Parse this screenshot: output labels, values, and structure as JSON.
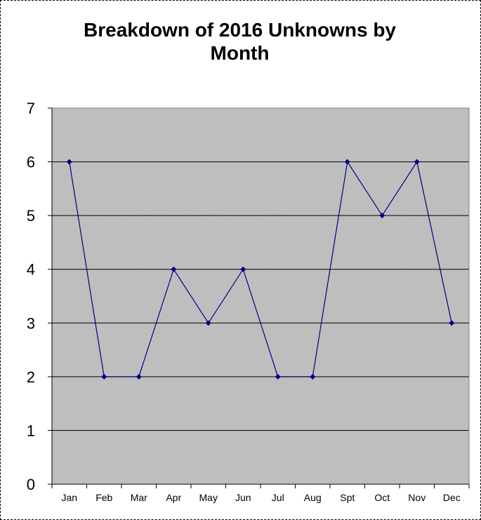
{
  "chart_data": {
    "type": "line",
    "title_line1": "Breakdown of 2016 Unknowns by",
    "title_line2": "Month",
    "xlabel": "",
    "ylabel": "",
    "categories": [
      "Jan",
      "Feb",
      "Mar",
      "Apr",
      "May",
      "Jun",
      "Jul",
      "Aug",
      "Spt",
      "Oct",
      "Nov",
      "Dec"
    ],
    "yticks": [
      "0",
      "1",
      "2",
      "3",
      "4",
      "5",
      "6",
      "7"
    ],
    "ylim": [
      0,
      7
    ],
    "grid": true,
    "legend": "none",
    "series": [
      {
        "values": [
          6,
          2,
          2,
          4,
          3,
          4,
          2,
          2,
          6,
          5,
          6,
          3
        ],
        "color": "#000080"
      }
    ],
    "plot_background": "#c0c0c0"
  }
}
